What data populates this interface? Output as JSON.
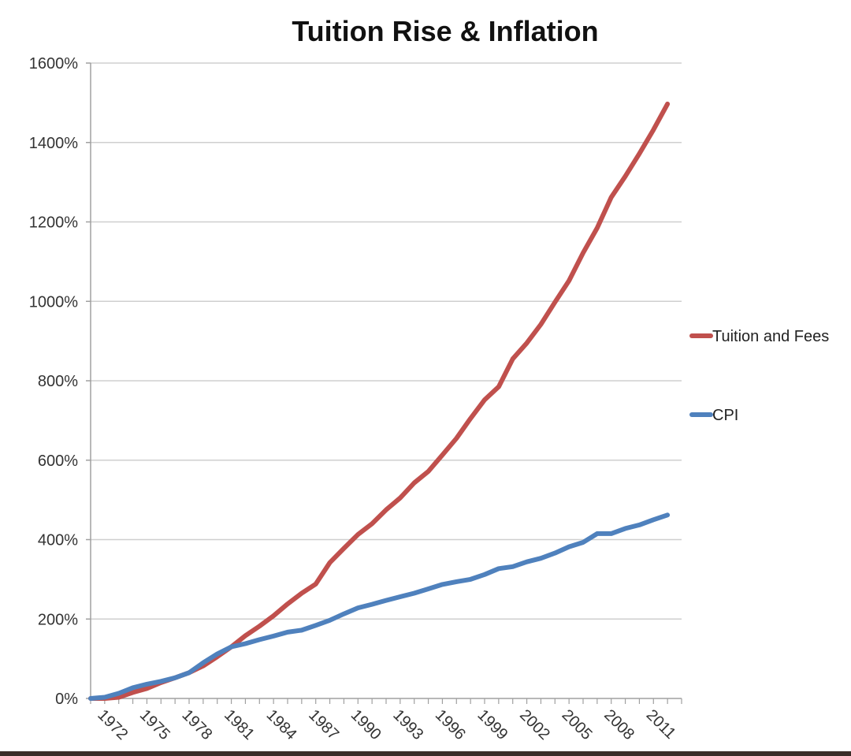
{
  "chart_data": {
    "type": "line",
    "title": "Tuition Rise & Inflation",
    "xlabel": "",
    "ylabel": "",
    "ylim": [
      0,
      1600
    ],
    "grid": true,
    "legend": "right",
    "y_ticks": [
      0,
      200,
      400,
      600,
      800,
      1000,
      1200,
      1400,
      1600
    ],
    "y_tick_labels": [
      "0%",
      "200%",
      "400%",
      "600%",
      "800%",
      "1000%",
      "1200%",
      "1400%",
      "1600%"
    ],
    "x_tick_labels": [
      "1972",
      "1975",
      "1978",
      "1981",
      "1984",
      "1987",
      "1990",
      "1993",
      "1996",
      "1999",
      "2002",
      "2005",
      "2008",
      "2011"
    ],
    "x": [
      1971,
      1972,
      1973,
      1974,
      1975,
      1976,
      1977,
      1978,
      1979,
      1980,
      1981,
      1982,
      1983,
      1984,
      1985,
      1986,
      1987,
      1988,
      1989,
      1990,
      1991,
      1992,
      1993,
      1994,
      1995,
      1996,
      1997,
      1998,
      1999,
      2000,
      2001,
      2002,
      2003,
      2004,
      2005,
      2006,
      2007,
      2008,
      2009,
      2010,
      2011,
      2012,
      2013
    ],
    "series": [
      {
        "name": "Tuition and Fees",
        "color": "#c0504d",
        "values": [
          0,
          0,
          3,
          15,
          25,
          40,
          52,
          65,
          82,
          105,
          130,
          158,
          182,
          208,
          238,
          265,
          288,
          342,
          378,
          413,
          440,
          475,
          505,
          543,
          572,
          613,
          655,
          705,
          752,
          785,
          855,
          895,
          942,
          998,
          1052,
          1122,
          1185,
          1262,
          1315,
          1372,
          1432,
          1497,
          null
        ]
      },
      {
        "name": "CPI",
        "color": "#4f81bd",
        "values": [
          0,
          3,
          13,
          27,
          36,
          43,
          52,
          65,
          90,
          112,
          130,
          138,
          148,
          157,
          167,
          172,
          184,
          197,
          213,
          228,
          237,
          247,
          256,
          265,
          276,
          287,
          294,
          300,
          312,
          327,
          332,
          344,
          353,
          366,
          382,
          393,
          415,
          415,
          428,
          437,
          450,
          462,
          null
        ]
      }
    ]
  }
}
